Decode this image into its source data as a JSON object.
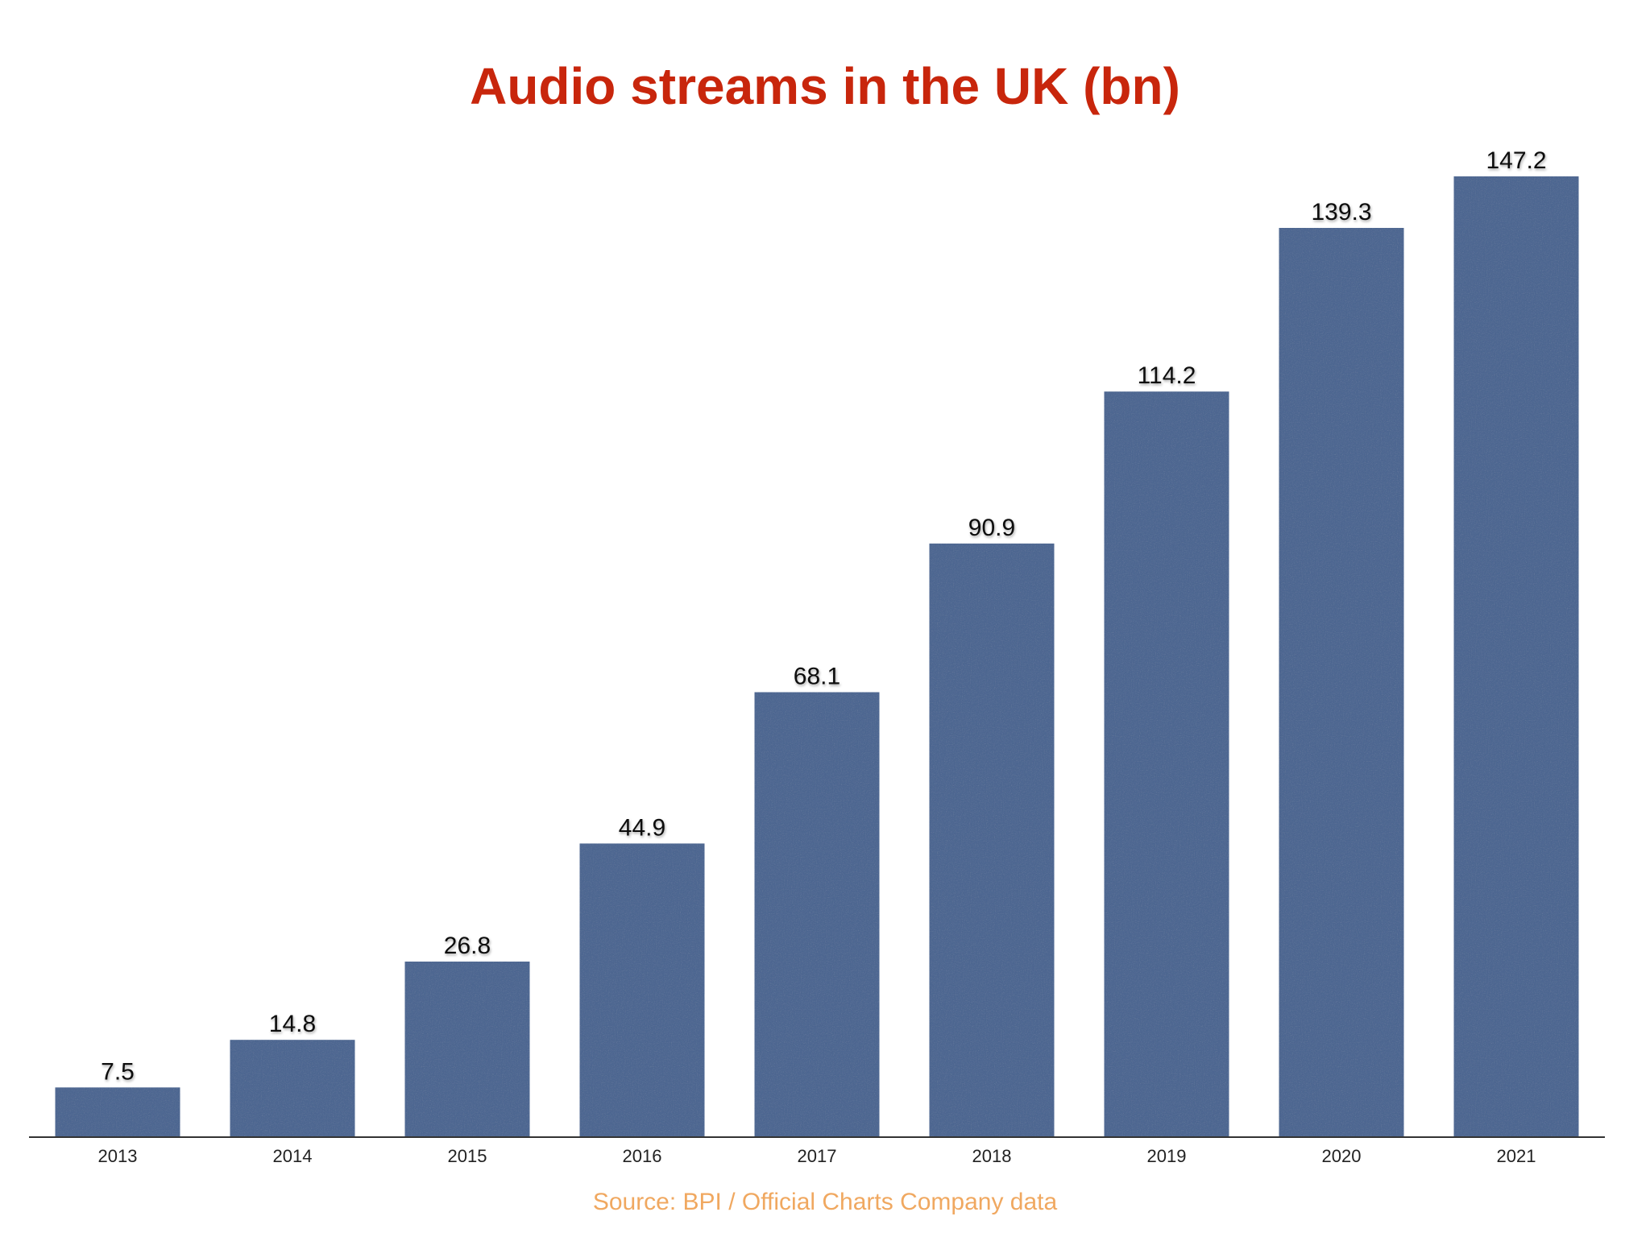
{
  "title": "Audio streams in the UK (bn)",
  "source": "Source: BPI / Official Charts Company data",
  "colors": {
    "title": "#c8260c",
    "bar": "#4d6791",
    "source": "#f0a860",
    "axis": "#333333"
  },
  "chart_data": {
    "type": "bar",
    "title": "Audio streams in the UK (bn)",
    "categories": [
      "2013",
      "2014",
      "2015",
      "2016",
      "2017",
      "2018",
      "2019",
      "2020",
      "2021"
    ],
    "values": [
      7.5,
      14.8,
      26.8,
      44.9,
      68.1,
      90.9,
      114.2,
      139.3,
      147.2
    ],
    "value_labels": [
      "7.5",
      "14.8",
      "26.8",
      "44.9",
      "68.1",
      "90.9",
      "114.2",
      "139.3",
      "147.2"
    ],
    "xlabel": "",
    "ylabel": "",
    "ylim": [
      0,
      147.2
    ],
    "grid": false,
    "legend": "none"
  }
}
